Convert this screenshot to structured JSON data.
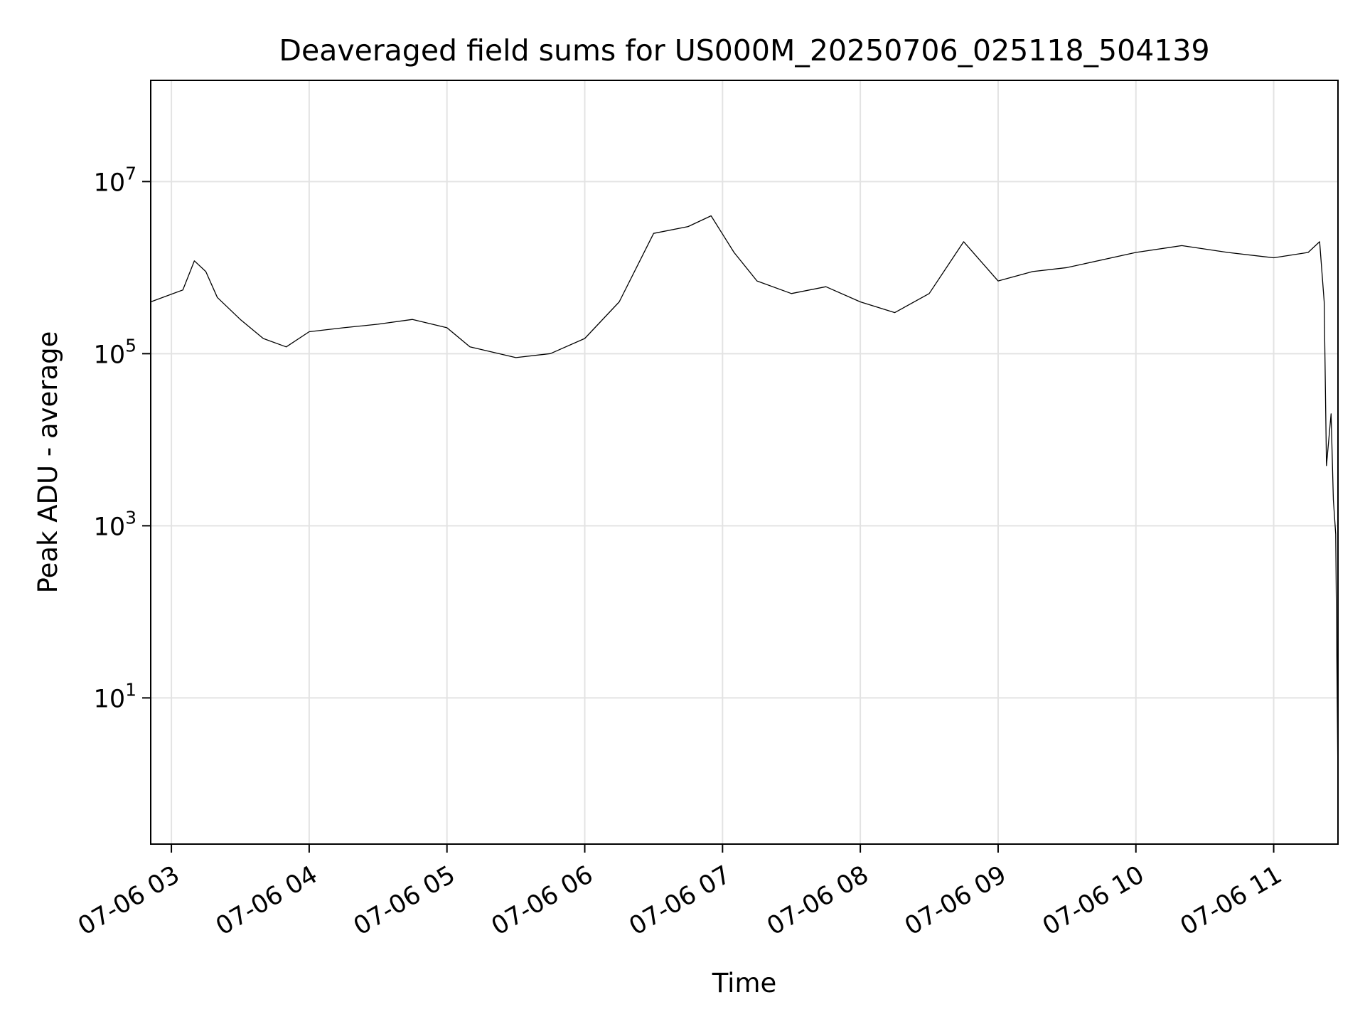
{
  "chart_data": {
    "type": "line",
    "title": "Deaveraged field sums for US000M_20250706_025118_504139",
    "xlabel": "Time",
    "ylabel": "Peak ADU - average",
    "x_range": [
      "2025-07-06 02:51",
      "2025-07-06 11:28"
    ],
    "y_scale": "log",
    "ylim": [
      0.2,
      150000000.0
    ],
    "grid": true,
    "line_color": "#000000",
    "x_ticks": [
      {
        "t": "2025-07-06 03:00",
        "label": "07-06 03"
      },
      {
        "t": "2025-07-06 04:00",
        "label": "07-06 04"
      },
      {
        "t": "2025-07-06 05:00",
        "label": "07-06 05"
      },
      {
        "t": "2025-07-06 06:00",
        "label": "07-06 06"
      },
      {
        "t": "2025-07-06 07:00",
        "label": "07-06 07"
      },
      {
        "t": "2025-07-06 08:00",
        "label": "07-06 08"
      },
      {
        "t": "2025-07-06 09:00",
        "label": "07-06 09"
      },
      {
        "t": "2025-07-06 10:00",
        "label": "07-06 10"
      },
      {
        "t": "2025-07-06 11:00",
        "label": "07-06 11"
      }
    ],
    "y_ticks": [
      {
        "value": 10,
        "base": "10",
        "exp": "1"
      },
      {
        "value": 1000,
        "base": "10",
        "exp": "3"
      },
      {
        "value": 100000,
        "base": "10",
        "exp": "5"
      },
      {
        "value": 10000000,
        "base": "10",
        "exp": "7"
      }
    ],
    "series": [
      {
        "x": [
          "2025-07-06 02:51",
          "2025-07-06 03:05",
          "2025-07-06 03:10",
          "2025-07-06 03:15",
          "2025-07-06 03:20",
          "2025-07-06 03:30",
          "2025-07-06 03:40",
          "2025-07-06 03:50",
          "2025-07-06 04:00",
          "2025-07-06 04:15",
          "2025-07-06 04:30",
          "2025-07-06 04:45",
          "2025-07-06 05:00",
          "2025-07-06 05:10",
          "2025-07-06 05:30",
          "2025-07-06 05:45",
          "2025-07-06 06:00",
          "2025-07-06 06:15",
          "2025-07-06 06:30",
          "2025-07-06 06:45",
          "2025-07-06 06:55",
          "2025-07-06 07:05",
          "2025-07-06 07:15",
          "2025-07-06 07:30",
          "2025-07-06 07:45",
          "2025-07-06 08:00",
          "2025-07-06 08:15",
          "2025-07-06 08:30",
          "2025-07-06 08:45",
          "2025-07-06 09:00",
          "2025-07-06 09:15",
          "2025-07-06 09:30",
          "2025-07-06 10:00",
          "2025-07-06 10:20",
          "2025-07-06 10:40",
          "2025-07-06 11:00",
          "2025-07-06 11:15",
          "2025-07-06 11:20",
          "2025-07-06 11:22",
          "2025-07-06 11:23",
          "2025-07-06 11:25",
          "2025-07-06 11:26",
          "2025-07-06 11:27",
          "2025-07-06 11:28"
        ],
        "y": [
          400000,
          550000,
          1200000,
          900000,
          450000,
          250000,
          150000,
          120000,
          180000,
          200000,
          220000,
          250000,
          200000,
          120000,
          90000,
          100000,
          150000,
          400000,
          2500000,
          3000000,
          4000000,
          1500000,
          700000,
          500000,
          600000,
          400000,
          300000,
          500000,
          2000000,
          700000,
          900000,
          1000000,
          1500000,
          1800000,
          1500000,
          1300000,
          1500000,
          2000000,
          400000,
          5000,
          20000,
          2000,
          800,
          1
        ]
      }
    ]
  }
}
